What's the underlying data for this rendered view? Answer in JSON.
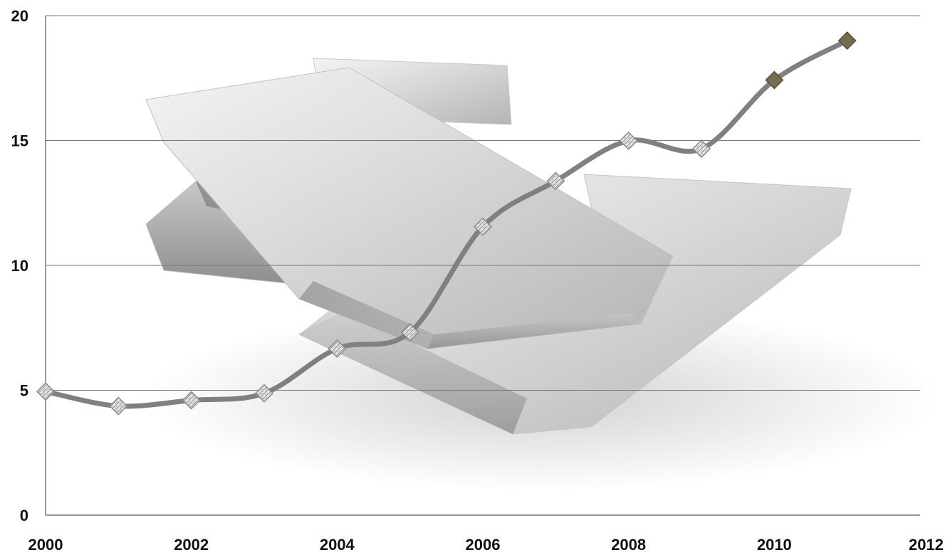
{
  "chart_data": {
    "type": "line",
    "title": "",
    "xlabel": "",
    "ylabel": "",
    "xlim": [
      2000,
      2012
    ],
    "ylim": [
      0,
      20
    ],
    "x_ticks": [
      2000,
      2002,
      2004,
      2006,
      2008,
      2010,
      2012
    ],
    "y_ticks": [
      0,
      5,
      10,
      15,
      20
    ],
    "x_tick_labels": [
      "2000",
      "2002",
      "2004",
      "2006",
      "2008",
      "2010",
      "2012"
    ],
    "y_tick_labels": [
      "0",
      "5",
      "10",
      "15",
      "20"
    ],
    "grid": "horizontal",
    "legend": "none",
    "background_image": "silver-bars",
    "series": [
      {
        "x": [
          2000,
          2001,
          2002,
          2003,
          2004,
          2005,
          2006,
          2007,
          2008,
          2009,
          2010,
          2011
        ],
        "values": [
          4.95,
          4.37,
          4.6,
          4.88,
          6.67,
          7.32,
          11.55,
          13.38,
          14.99,
          14.67,
          17.42,
          19.0
        ],
        "line_color": "#808080",
        "marker": "diamond",
        "marker_colors": {
          "textured": "#d8d8d8",
          "solid": "#7a6a4f"
        }
      }
    ]
  }
}
